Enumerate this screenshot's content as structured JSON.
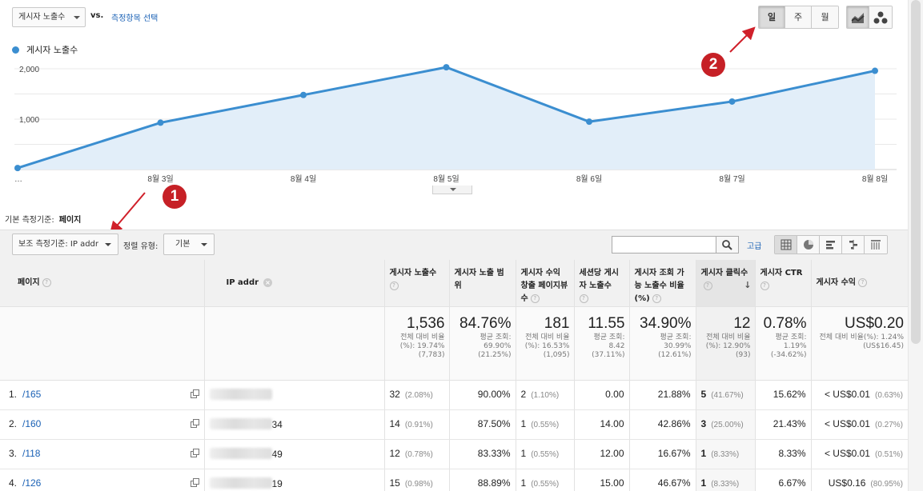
{
  "toolbar": {
    "metric_select": "게시자 노출수",
    "vs": "vs.",
    "compare_link": "측정항목 선택",
    "intervals": [
      "일",
      "주",
      "월"
    ],
    "active_interval": "일",
    "chart_types": [
      "line-chart-icon",
      "motion-chart-icon"
    ]
  },
  "chart_data": {
    "type": "area",
    "series": [
      {
        "name": "게시자 노출수",
        "values": [
          30,
          930,
          1480,
          2030,
          950,
          1350,
          1960
        ]
      }
    ],
    "x": [
      "…",
      "8월 3일",
      "8월 4일",
      "8월 5일",
      "8월 6일",
      "8월 7일",
      "8월 8일"
    ],
    "yticks": [
      "2,000",
      "1,000"
    ],
    "ylim": [
      0,
      2000
    ],
    "grid": true,
    "color": "#3b8ed0"
  },
  "markers": [
    "1",
    "2"
  ],
  "primary_dimension": {
    "label": "기본 측정기준:",
    "value": "페이지"
  },
  "controls": {
    "secondary_dimension": "보조 측정기준: IP addr",
    "sort_type_label": "정렬 유형:",
    "sort_type_value": "기본",
    "search_placeholder": "",
    "advanced_link": "고급"
  },
  "table": {
    "headers": [
      {
        "key": "page",
        "label": "페이지"
      },
      {
        "key": "ip",
        "label": "IP addr"
      },
      {
        "key": "impr",
        "label": "게시자 노출수"
      },
      {
        "key": "coverage",
        "label": "게시자 노출 범위"
      },
      {
        "key": "rev_pv",
        "label": "게시자 수익 창출 페이지뷰 수"
      },
      {
        "key": "impr_session",
        "label": "세션당 게시자 노출수"
      },
      {
        "key": "viewable",
        "label": "게시자 조회 가능 노출수 비율 (%)"
      },
      {
        "key": "clicks",
        "label": "게시자 클릭수"
      },
      {
        "key": "ctr",
        "label": "게시자 CTR"
      },
      {
        "key": "revenue",
        "label": "게시자 수익"
      }
    ],
    "totals": [
      {
        "value": "1,536",
        "sub": "전체 대비 비율 (%): 19.74% (7,783)"
      },
      {
        "value": "84.76%",
        "sub": "평균 조회: 69.90% (21.25%)"
      },
      {
        "value": "181",
        "sub": "전체 대비 비율(%): 16.53% (1,095)"
      },
      {
        "value": "11.55",
        "sub": "평균 조회: 8.42 (37.11%)"
      },
      {
        "value": "34.90%",
        "sub": "평균 조회: 30.99% (12.61%)"
      },
      {
        "value": "12",
        "sub": "전체 대비 비율(%): 12.90% (93)"
      },
      {
        "value": "0.78%",
        "sub": "평균 조회: 1.19% (-34.62%)"
      },
      {
        "value": "US$0.20",
        "sub": "전체 대비 비율(%): 1.24% (US$16.45)"
      }
    ],
    "rows": [
      {
        "idx": "1.",
        "page": "/165",
        "ip_tail": "",
        "impr": "32",
        "impr_pct": "(2.08%)",
        "coverage": "90.00%",
        "rev_pv": "2",
        "rev_pv_pct": "(1.10%)",
        "impr_session": "0.00",
        "viewable": "21.88%",
        "clicks": "5",
        "clicks_pct": "(41.67%)",
        "ctr": "15.62%",
        "revenue": "< US$0.01",
        "revenue_pct": "(0.63%)"
      },
      {
        "idx": "2.",
        "page": "/160",
        "ip_tail": "34",
        "impr": "14",
        "impr_pct": "(0.91%)",
        "coverage": "87.50%",
        "rev_pv": "1",
        "rev_pv_pct": "(0.55%)",
        "impr_session": "14.00",
        "viewable": "42.86%",
        "clicks": "3",
        "clicks_pct": "(25.00%)",
        "ctr": "21.43%",
        "revenue": "< US$0.01",
        "revenue_pct": "(0.27%)"
      },
      {
        "idx": "3.",
        "page": "/118",
        "ip_tail": "49",
        "impr": "12",
        "impr_pct": "(0.78%)",
        "coverage": "83.33%",
        "rev_pv": "1",
        "rev_pv_pct": "(0.55%)",
        "impr_session": "12.00",
        "viewable": "16.67%",
        "clicks": "1",
        "clicks_pct": "(8.33%)",
        "ctr": "8.33%",
        "revenue": "< US$0.01",
        "revenue_pct": "(0.51%)"
      },
      {
        "idx": "4.",
        "page": "/126",
        "ip_tail": "19",
        "impr": "15",
        "impr_pct": "(0.98%)",
        "coverage": "88.89%",
        "rev_pv": "1",
        "rev_pv_pct": "(0.55%)",
        "impr_session": "15.00",
        "viewable": "46.67%",
        "clicks": "1",
        "clicks_pct": "(8.33%)",
        "ctr": "6.67%",
        "revenue": "US$0.16",
        "revenue_pct": "(80.95%)"
      }
    ]
  }
}
